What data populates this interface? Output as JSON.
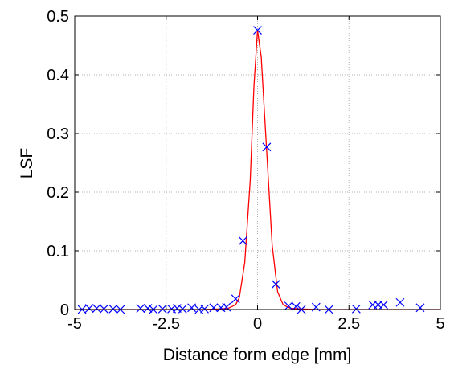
{
  "chart_data": {
    "type": "scatter",
    "title": "",
    "xlabel": "Distance form edge [mm]",
    "ylabel": "LSF",
    "xlim": [
      -5,
      5
    ],
    "ylim": [
      0,
      0.5
    ],
    "grid": true,
    "legend": "none",
    "x_ticks": [
      -5,
      -2.5,
      0,
      2.5,
      5
    ],
    "x_tick_labels": [
      "-5",
      "-2.5",
      "0",
      "2.5",
      "5"
    ],
    "y_ticks": [
      0,
      0.1,
      0.2,
      0.3,
      0.4,
      0.5
    ],
    "y_tick_labels": [
      "0",
      "0.1",
      "0.2",
      "0.3",
      "0.4",
      "0.5"
    ],
    "series": [
      {
        "marker": "x",
        "color": "#0000ff",
        "x": [
          -4.8,
          -4.6,
          -4.4,
          -4.2,
          -3.95,
          -3.75,
          -3.2,
          -3.0,
          -2.85,
          -2.6,
          -2.35,
          -2.2,
          -2.05,
          -1.8,
          -1.6,
          -1.45,
          -1.2,
          -1.0,
          -0.85,
          -0.6,
          -0.4,
          0.0,
          0.25,
          0.5,
          0.85,
          1.05,
          1.2,
          1.6,
          1.95,
          2.7,
          3.15,
          3.3,
          3.45,
          3.9,
          4.45
        ],
        "y": [
          0.0,
          0.002,
          0.002,
          0.001,
          0.001,
          0.0,
          0.002,
          0.002,
          0.0,
          0.001,
          0.001,
          0.002,
          0.001,
          0.003,
          0.0,
          0.001,
          0.003,
          0.003,
          0.004,
          0.018,
          0.117,
          0.476,
          0.277,
          0.043,
          0.006,
          0.005,
          0.0,
          0.004,
          0.0,
          0.001,
          0.008,
          0.008,
          0.008,
          0.012,
          0.003
        ]
      },
      {
        "line": "solid",
        "color": "#ff0000",
        "x": [
          -5.0,
          -4.5,
          -4.0,
          -3.5,
          -3.0,
          -2.5,
          -2.0,
          -1.5,
          -1.0,
          -0.8,
          -0.6,
          -0.5,
          -0.35,
          -0.2,
          -0.1,
          0.0,
          0.1,
          0.25,
          0.4,
          0.55,
          0.7,
          0.9,
          1.2,
          1.6,
          2.0,
          2.5,
          3.0,
          3.5,
          4.0,
          4.5,
          5.0
        ],
        "y": [
          0.0,
          0.0,
          0.0,
          0.0,
          0.0,
          0.0,
          0.0,
          0.0,
          0.001,
          0.002,
          0.008,
          0.02,
          0.08,
          0.22,
          0.38,
          0.476,
          0.43,
          0.27,
          0.11,
          0.03,
          0.008,
          0.002,
          0.001,
          0.0,
          0.0,
          0.0,
          0.0,
          0.0,
          0.0,
          0.0,
          0.0
        ]
      }
    ]
  }
}
